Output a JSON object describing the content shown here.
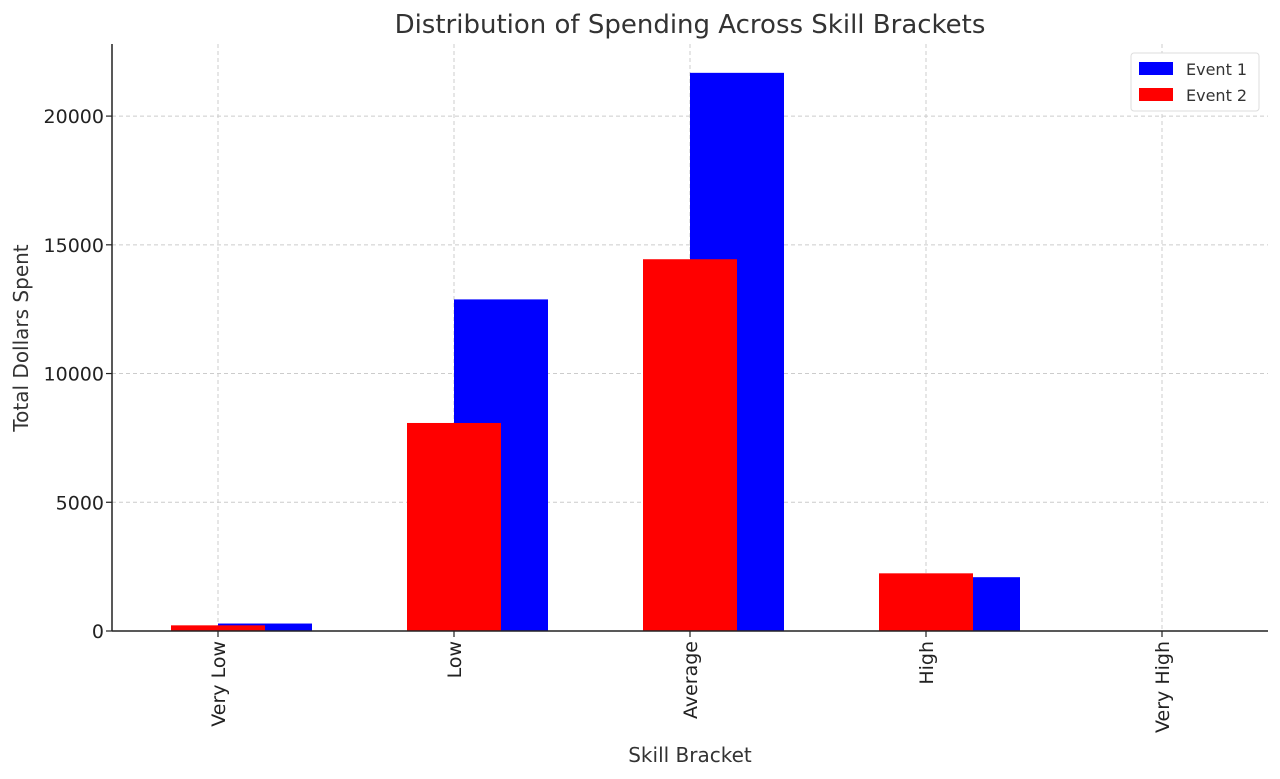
{
  "chart_data": {
    "type": "bar",
    "title": "Distribution of Spending Across Skill Brackets",
    "xlabel": "Skill Bracket",
    "ylabel": "Total Dollars Spent",
    "categories": [
      "Very Low",
      "Low",
      "Average",
      "High",
      "Very High"
    ],
    "series": [
      {
        "name": "Event 1",
        "color": "#0000ff",
        "values": [
          290,
          12880,
          21680,
          2090,
          0
        ]
      },
      {
        "name": "Event 2",
        "color": "#ff0000",
        "values": [
          220,
          8080,
          14440,
          2240,
          0
        ]
      }
    ],
    "ylim": [
      0,
      22800
    ],
    "yticks": [
      0,
      5000,
      10000,
      15000,
      20000
    ],
    "grid": true,
    "legend_position": "top-right"
  }
}
